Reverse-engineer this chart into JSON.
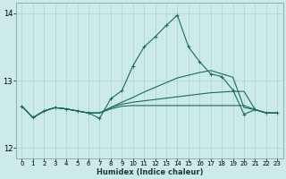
{
  "xlabel": "Humidex (Indice chaleur)",
  "background_color": "#cceae7",
  "grid_color": "#aad4d0",
  "line_color": "#1a6b5a",
  "xlim": [
    -0.5,
    23.5
  ],
  "ylim": [
    11.85,
    14.15
  ],
  "yticks": [
    12,
    13,
    14
  ],
  "xticks": [
    0,
    1,
    2,
    3,
    4,
    5,
    6,
    7,
    8,
    9,
    10,
    11,
    12,
    13,
    14,
    15,
    16,
    17,
    18,
    19,
    20,
    21,
    22,
    23
  ],
  "main_y": [
    12.62,
    12.45,
    12.55,
    12.6,
    12.58,
    12.55,
    12.52,
    12.44,
    12.73,
    12.85,
    13.22,
    13.5,
    13.65,
    13.82,
    13.97,
    13.5,
    13.28,
    13.1,
    13.06,
    12.86,
    12.5,
    12.57,
    12.52,
    12.52
  ],
  "line2_y": [
    12.62,
    12.45,
    12.55,
    12.6,
    12.58,
    12.55,
    12.52,
    12.52,
    12.6,
    12.68,
    12.75,
    12.83,
    12.9,
    12.97,
    13.04,
    13.08,
    13.12,
    13.15,
    13.1,
    13.05,
    12.6,
    12.57,
    12.52,
    12.52
  ],
  "line3_y": [
    12.62,
    12.45,
    12.55,
    12.6,
    12.58,
    12.55,
    12.52,
    12.52,
    12.6,
    12.65,
    12.68,
    12.7,
    12.72,
    12.74,
    12.76,
    12.78,
    12.8,
    12.82,
    12.83,
    12.84,
    12.84,
    12.57,
    12.52,
    12.52
  ],
  "line4_y": [
    12.62,
    12.45,
    12.55,
    12.6,
    12.58,
    12.55,
    12.52,
    12.52,
    12.58,
    12.62,
    12.63,
    12.63,
    12.63,
    12.63,
    12.63,
    12.63,
    12.63,
    12.63,
    12.63,
    12.63,
    12.63,
    12.57,
    12.52,
    12.52
  ]
}
